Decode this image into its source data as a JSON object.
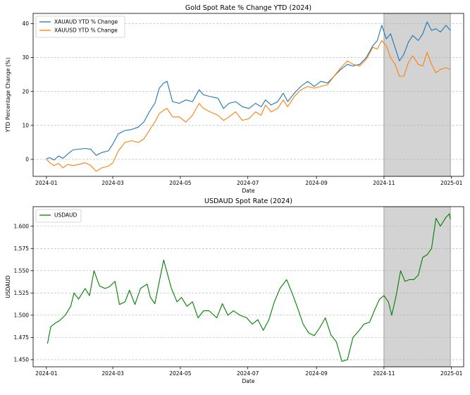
{
  "chart_data": [
    {
      "type": "line",
      "title": "Gold Spot Rate % Change YTD (2024)",
      "xlabel": "Date",
      "ylabel": "YTD Percentage Change (%)",
      "xlim": [
        "2023-12-20",
        "2025-01-12"
      ],
      "ylim": [
        -5,
        43
      ],
      "x_ticks": [
        "2024-01",
        "2024-03",
        "2024-05",
        "2024-07",
        "2024-09",
        "2024-11",
        "2025-01"
      ],
      "y_ticks": [
        0,
        10,
        20,
        30,
        40
      ],
      "grid": "horizontal",
      "legend_position": "top-left",
      "shaded_region": [
        "2024-11-01",
        "2024-12-31"
      ],
      "series": [
        {
          "name": "XAUAUD YTD % Change",
          "color": "#1f77b4",
          "points": [
            [
              "2024-01-01",
              0.2
            ],
            [
              "2024-01-04",
              0.5
            ],
            [
              "2024-01-08",
              -0.2
            ],
            [
              "2024-01-12",
              1.0
            ],
            [
              "2024-01-16",
              0.3
            ],
            [
              "2024-01-20",
              1.5
            ],
            [
              "2024-01-25",
              2.8
            ],
            [
              "2024-01-30",
              3.0
            ],
            [
              "2024-02-05",
              3.2
            ],
            [
              "2024-02-10",
              3.0
            ],
            [
              "2024-02-15",
              1.2
            ],
            [
              "2024-02-20",
              2.0
            ],
            [
              "2024-02-26",
              2.5
            ],
            [
              "2024-03-01",
              4.5
            ],
            [
              "2024-03-06",
              7.5
            ],
            [
              "2024-03-12",
              8.5
            ],
            [
              "2024-03-18",
              8.8
            ],
            [
              "2024-03-24",
              9.5
            ],
            [
              "2024-03-29",
              11.0
            ],
            [
              "2024-04-03",
              14.0
            ],
            [
              "2024-04-08",
              16.5
            ],
            [
              "2024-04-12",
              21.0
            ],
            [
              "2024-04-16",
              22.5
            ],
            [
              "2024-04-19",
              23.0
            ],
            [
              "2024-04-24",
              17.0
            ],
            [
              "2024-04-30",
              16.5
            ],
            [
              "2024-05-06",
              17.5
            ],
            [
              "2024-05-12",
              17.0
            ],
            [
              "2024-05-18",
              20.5
            ],
            [
              "2024-05-22",
              19.0
            ],
            [
              "2024-05-28",
              18.5
            ],
            [
              "2024-06-04",
              18.0
            ],
            [
              "2024-06-09",
              15.0
            ],
            [
              "2024-06-14",
              16.5
            ],
            [
              "2024-06-20",
              17.0
            ],
            [
              "2024-06-26",
              15.5
            ],
            [
              "2024-07-02",
              15.0
            ],
            [
              "2024-07-08",
              16.5
            ],
            [
              "2024-07-13",
              15.5
            ],
            [
              "2024-07-17",
              17.5
            ],
            [
              "2024-07-22",
              16.0
            ],
            [
              "2024-07-28",
              17.0
            ],
            [
              "2024-08-02",
              19.5
            ],
            [
              "2024-08-06",
              17.0
            ],
            [
              "2024-08-12",
              19.5
            ],
            [
              "2024-08-18",
              21.5
            ],
            [
              "2024-08-24",
              23.0
            ],
            [
              "2024-08-30",
              21.5
            ],
            [
              "2024-09-05",
              23.0
            ],
            [
              "2024-09-11",
              22.5
            ],
            [
              "2024-09-17",
              24.5
            ],
            [
              "2024-09-23",
              26.5
            ],
            [
              "2024-09-29",
              28.0
            ],
            [
              "2024-10-04",
              27.5
            ],
            [
              "2024-10-10",
              28.0
            ],
            [
              "2024-10-16",
              30.0
            ],
            [
              "2024-10-22",
              33.5
            ],
            [
              "2024-10-26",
              35.0
            ],
            [
              "2024-10-30",
              39.5
            ],
            [
              "2024-11-03",
              35.5
            ],
            [
              "2024-11-07",
              37.0
            ],
            [
              "2024-11-11",
              33.0
            ],
            [
              "2024-11-15",
              29.0
            ],
            [
              "2024-11-19",
              31.0
            ],
            [
              "2024-11-23",
              34.5
            ],
            [
              "2024-11-27",
              36.5
            ],
            [
              "2024-12-02",
              35.0
            ],
            [
              "2024-12-06",
              37.0
            ],
            [
              "2024-12-10",
              40.5
            ],
            [
              "2024-12-14",
              38.0
            ],
            [
              "2024-12-18",
              38.5
            ],
            [
              "2024-12-22",
              37.5
            ],
            [
              "2024-12-27",
              39.5
            ],
            [
              "2024-12-31",
              38.0
            ]
          ]
        },
        {
          "name": "XAUUSD YTD % Change",
          "color": "#ff7f0e",
          "points": [
            [
              "2024-01-01",
              0.1
            ],
            [
              "2024-01-04",
              -1.0
            ],
            [
              "2024-01-08",
              -1.8
            ],
            [
              "2024-01-12",
              -1.2
            ],
            [
              "2024-01-16",
              -2.5
            ],
            [
              "2024-01-20",
              -1.5
            ],
            [
              "2024-01-25",
              -1.8
            ],
            [
              "2024-01-30",
              -1.5
            ],
            [
              "2024-02-05",
              -1.0
            ],
            [
              "2024-02-10",
              -1.8
            ],
            [
              "2024-02-15",
              -3.5
            ],
            [
              "2024-02-20",
              -2.5
            ],
            [
              "2024-02-26",
              -2.0
            ],
            [
              "2024-03-01",
              -1.0
            ],
            [
              "2024-03-06",
              2.5
            ],
            [
              "2024-03-12",
              5.0
            ],
            [
              "2024-03-18",
              5.5
            ],
            [
              "2024-03-24",
              5.0
            ],
            [
              "2024-03-29",
              6.0
            ],
            [
              "2024-04-03",
              8.5
            ],
            [
              "2024-04-08",
              11.0
            ],
            [
              "2024-04-12",
              13.5
            ],
            [
              "2024-04-16",
              14.5
            ],
            [
              "2024-04-19",
              15.0
            ],
            [
              "2024-04-24",
              12.5
            ],
            [
              "2024-04-30",
              12.5
            ],
            [
              "2024-05-06",
              11.0
            ],
            [
              "2024-05-12",
              13.0
            ],
            [
              "2024-05-18",
              16.5
            ],
            [
              "2024-05-22",
              15.0
            ],
            [
              "2024-05-28",
              14.0
            ],
            [
              "2024-06-04",
              13.0
            ],
            [
              "2024-06-09",
              11.5
            ],
            [
              "2024-06-14",
              12.5
            ],
            [
              "2024-06-20",
              14.0
            ],
            [
              "2024-06-26",
              11.5
            ],
            [
              "2024-07-02",
              12.0
            ],
            [
              "2024-07-08",
              14.0
            ],
            [
              "2024-07-13",
              13.0
            ],
            [
              "2024-07-17",
              16.0
            ],
            [
              "2024-07-22",
              14.0
            ],
            [
              "2024-07-28",
              15.0
            ],
            [
              "2024-08-02",
              17.5
            ],
            [
              "2024-08-06",
              15.5
            ],
            [
              "2024-08-12",
              18.5
            ],
            [
              "2024-08-18",
              20.5
            ],
            [
              "2024-08-24",
              21.5
            ],
            [
              "2024-08-30",
              21.0
            ],
            [
              "2024-09-05",
              21.5
            ],
            [
              "2024-09-11",
              22.0
            ],
            [
              "2024-09-17",
              24.5
            ],
            [
              "2024-09-23",
              27.0
            ],
            [
              "2024-09-29",
              29.0
            ],
            [
              "2024-10-04",
              28.0
            ],
            [
              "2024-10-10",
              27.5
            ],
            [
              "2024-10-16",
              29.5
            ],
            [
              "2024-10-22",
              33.0
            ],
            [
              "2024-10-26",
              32.5
            ],
            [
              "2024-10-30",
              35.0
            ],
            [
              "2024-11-03",
              33.5
            ],
            [
              "2024-11-07",
              30.0
            ],
            [
              "2024-11-11",
              28.0
            ],
            [
              "2024-11-15",
              24.5
            ],
            [
              "2024-11-19",
              24.5
            ],
            [
              "2024-11-23",
              28.5
            ],
            [
              "2024-11-27",
              30.5
            ],
            [
              "2024-12-02",
              28.0
            ],
            [
              "2024-12-06",
              27.5
            ],
            [
              "2024-12-10",
              31.5
            ],
            [
              "2024-12-14",
              28.0
            ],
            [
              "2024-12-18",
              25.5
            ],
            [
              "2024-12-22",
              26.5
            ],
            [
              "2024-12-27",
              27.0
            ],
            [
              "2024-12-31",
              26.5
            ]
          ]
        }
      ]
    },
    {
      "type": "line",
      "title": "USDAUD Spot Rate (2024)",
      "xlabel": "Date",
      "ylabel": "USDAUD",
      "xlim": [
        "2023-12-20",
        "2025-01-12"
      ],
      "ylim": [
        1.442,
        1.622
      ],
      "x_ticks": [
        "2024-01",
        "2024-03",
        "2024-05",
        "2024-07",
        "2024-09",
        "2024-11",
        "2025-01"
      ],
      "y_ticks": [
        1.45,
        1.475,
        1.5,
        1.525,
        1.55,
        1.575,
        1.6
      ],
      "grid": "horizontal",
      "legend_position": "top-left",
      "shaded_region": [
        "2024-11-01",
        "2024-12-31"
      ],
      "series": [
        {
          "name": "USDAUD",
          "color": "#008000",
          "points": [
            [
              "2024-01-02",
              1.468
            ],
            [
              "2024-01-05",
              1.487
            ],
            [
              "2024-01-09",
              1.491
            ],
            [
              "2024-01-13",
              1.494
            ],
            [
              "2024-01-18",
              1.5
            ],
            [
              "2024-01-23",
              1.51
            ],
            [
              "2024-01-26",
              1.525
            ],
            [
              "2024-01-30",
              1.518
            ],
            [
              "2024-02-05",
              1.53
            ],
            [
              "2024-02-09",
              1.522
            ],
            [
              "2024-02-13",
              1.55
            ],
            [
              "2024-02-18",
              1.533
            ],
            [
              "2024-02-23",
              1.53
            ],
            [
              "2024-02-27",
              1.532
            ],
            [
              "2024-03-03",
              1.538
            ],
            [
              "2024-03-07",
              1.512
            ],
            [
              "2024-03-12",
              1.515
            ],
            [
              "2024-03-16",
              1.528
            ],
            [
              "2024-03-21",
              1.512
            ],
            [
              "2024-03-26",
              1.53
            ],
            [
              "2024-04-01",
              1.535
            ],
            [
              "2024-04-04",
              1.52
            ],
            [
              "2024-04-08",
              1.513
            ],
            [
              "2024-04-12",
              1.538
            ],
            [
              "2024-04-16",
              1.562
            ],
            [
              "2024-04-19",
              1.548
            ],
            [
              "2024-04-23",
              1.53
            ],
            [
              "2024-04-28",
              1.515
            ],
            [
              "2024-05-02",
              1.52
            ],
            [
              "2024-05-07",
              1.51
            ],
            [
              "2024-05-12",
              1.515
            ],
            [
              "2024-05-17",
              1.497
            ],
            [
              "2024-05-22",
              1.505
            ],
            [
              "2024-05-27",
              1.505
            ],
            [
              "2024-06-03",
              1.497
            ],
            [
              "2024-06-08",
              1.513
            ],
            [
              "2024-06-13",
              1.5
            ],
            [
              "2024-06-18",
              1.505
            ],
            [
              "2024-06-24",
              1.5
            ],
            [
              "2024-06-30",
              1.497
            ],
            [
              "2024-07-05",
              1.49
            ],
            [
              "2024-07-10",
              1.495
            ],
            [
              "2024-07-15",
              1.483
            ],
            [
              "2024-07-20",
              1.495
            ],
            [
              "2024-07-25",
              1.515
            ],
            [
              "2024-07-30",
              1.53
            ],
            [
              "2024-08-05",
              1.54
            ],
            [
              "2024-08-10",
              1.525
            ],
            [
              "2024-08-15",
              1.508
            ],
            [
              "2024-08-20",
              1.49
            ],
            [
              "2024-08-25",
              1.48
            ],
            [
              "2024-08-30",
              1.477
            ],
            [
              "2024-09-04",
              1.486
            ],
            [
              "2024-09-09",
              1.497
            ],
            [
              "2024-09-14",
              1.478
            ],
            [
              "2024-09-19",
              1.47
            ],
            [
              "2024-09-24",
              1.448
            ],
            [
              "2024-09-29",
              1.45
            ],
            [
              "2024-10-04",
              1.475
            ],
            [
              "2024-10-09",
              1.482
            ],
            [
              "2024-10-14",
              1.49
            ],
            [
              "2024-10-19",
              1.492
            ],
            [
              "2024-10-24",
              1.507
            ],
            [
              "2024-10-28",
              1.518
            ],
            [
              "2024-11-01",
              1.522
            ],
            [
              "2024-11-05",
              1.515
            ],
            [
              "2024-11-08",
              1.5
            ],
            [
              "2024-11-12",
              1.522
            ],
            [
              "2024-11-16",
              1.55
            ],
            [
              "2024-11-20",
              1.538
            ],
            [
              "2024-11-24",
              1.54
            ],
            [
              "2024-11-28",
              1.54
            ],
            [
              "2024-12-02",
              1.545
            ],
            [
              "2024-12-06",
              1.565
            ],
            [
              "2024-12-10",
              1.568
            ],
            [
              "2024-12-14",
              1.575
            ],
            [
              "2024-12-18",
              1.609
            ],
            [
              "2024-12-22",
              1.6
            ],
            [
              "2024-12-27",
              1.61
            ],
            [
              "2024-12-30",
              1.614
            ],
            [
              "2024-12-31",
              1.608
            ]
          ]
        }
      ]
    }
  ]
}
